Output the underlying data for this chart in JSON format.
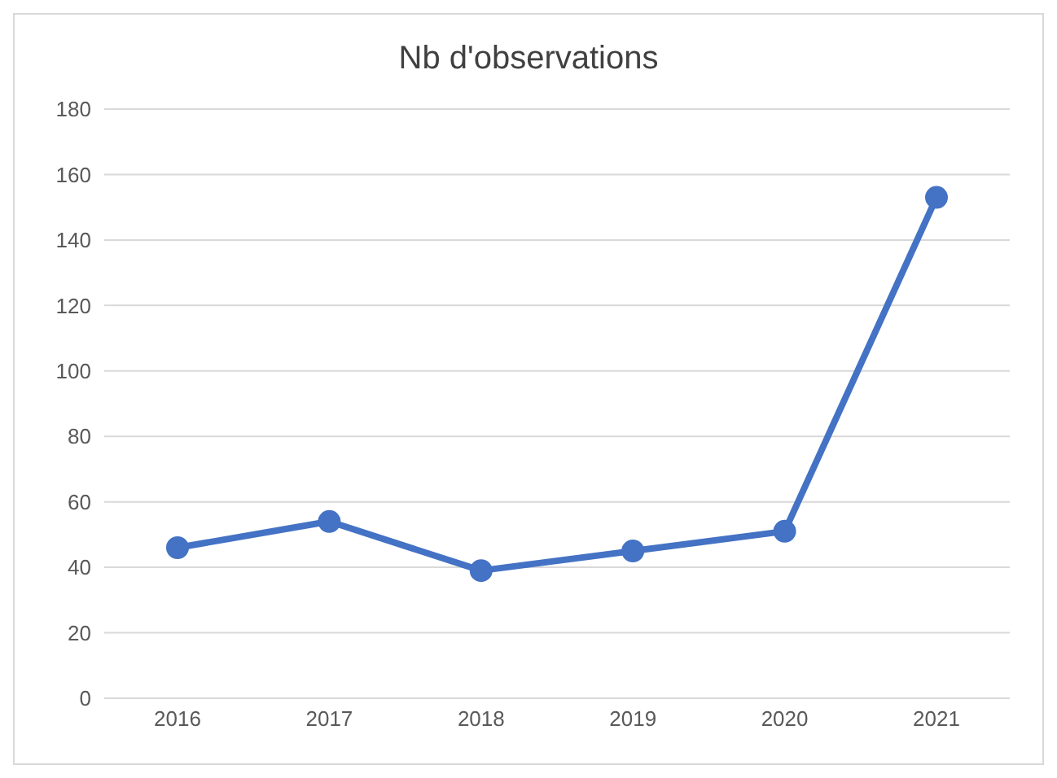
{
  "chart_data": {
    "type": "line",
    "title": "Nb d'observations",
    "categories": [
      "2016",
      "2017",
      "2018",
      "2019",
      "2020",
      "2021"
    ],
    "series": [
      {
        "color": "#4472c4",
        "values": [
          46,
          54,
          39,
          45,
          51,
          153
        ]
      }
    ],
    "ylim": [
      0,
      180
    ],
    "yticks": [
      0,
      20,
      40,
      60,
      80,
      100,
      120,
      140,
      160,
      180
    ],
    "grid": "y",
    "marker": "circle",
    "line_style": "solid",
    "legend": false
  }
}
